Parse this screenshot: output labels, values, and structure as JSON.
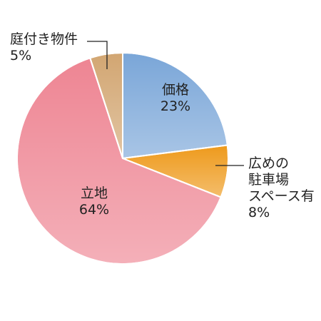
{
  "chart_data": {
    "type": "pie",
    "categories": [
      "価格",
      "広めの\n駐車場\nスペース有",
      "立地",
      "庭付き物件"
    ],
    "values": [
      23,
      8,
      64,
      5
    ],
    "value_labels": [
      "23%",
      "8%",
      "64%",
      "5%"
    ],
    "colors": [
      "#7aa6d8",
      "#ee9a1c",
      "#ee8593",
      "#d2a672"
    ]
  }
}
